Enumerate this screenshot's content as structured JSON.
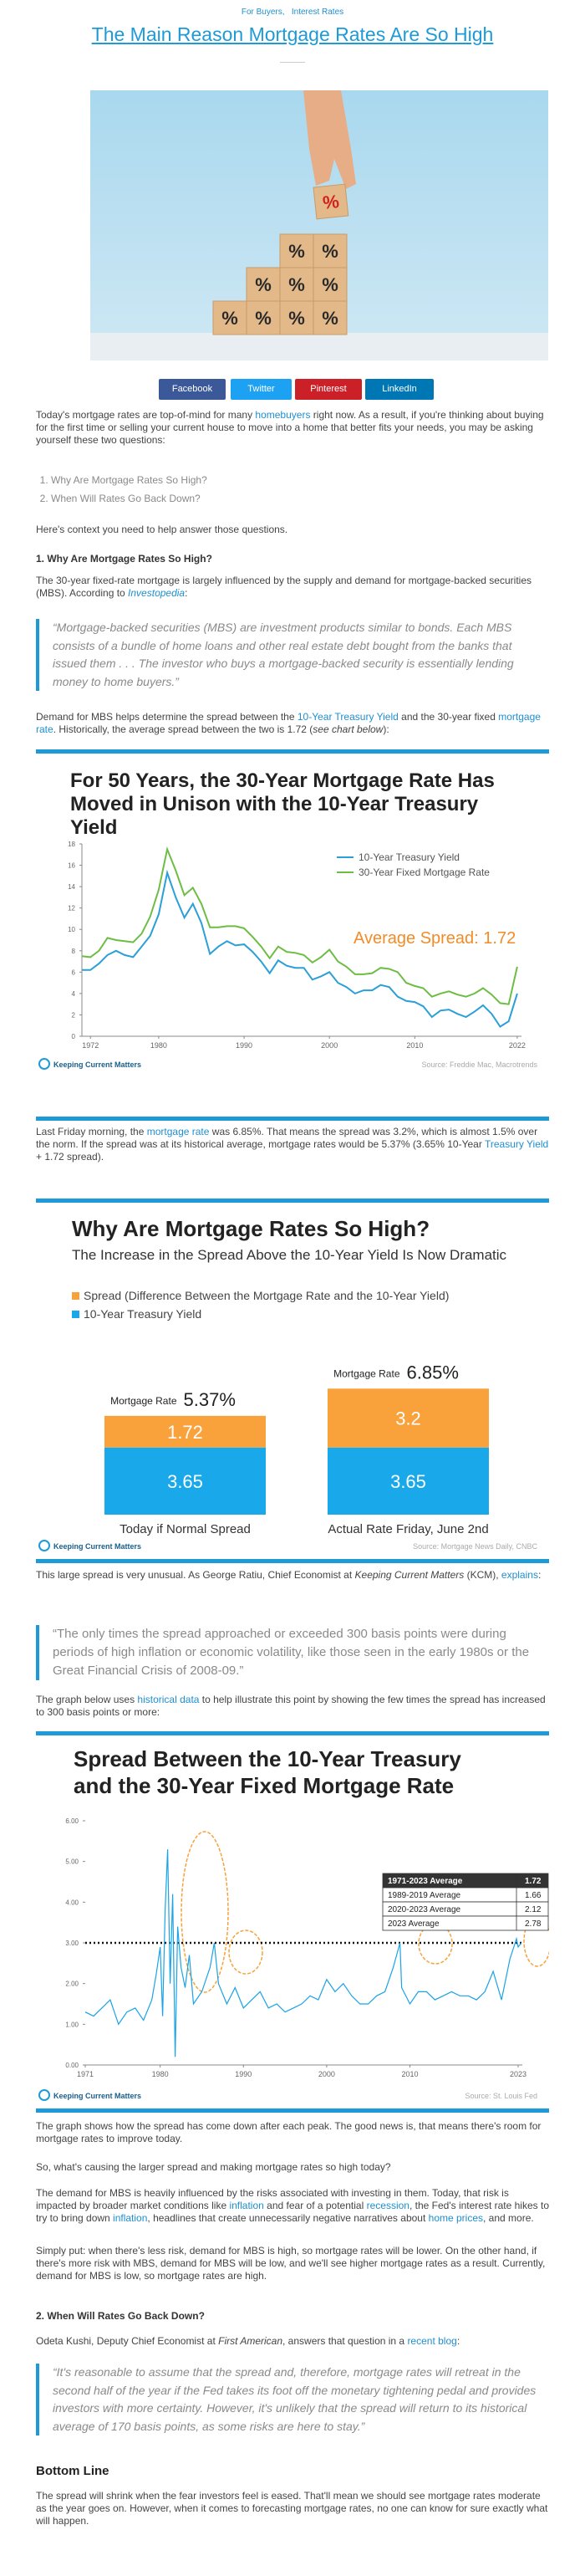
{
  "header": {
    "categories": [
      "For Buyers,",
      "Interest Rates"
    ],
    "title": "The Main Reason Mortgage Rates Are So High"
  },
  "hero": {
    "block_text": "%"
  },
  "share": [
    "Facebook",
    "Twitter",
    "Pinterest",
    "LinkedIn"
  ],
  "article": {
    "intro": [
      "Today's mortgage rates are top-of-mind for many ",
      {
        "t": "homebuyers",
        "s": "link"
      },
      " right now. As a result, if you're thinking about buying for the first time or selling your current house to move into a home that better fits your needs, you may be asking yourself these two questions:"
    ],
    "questions": [
      "Why Are Mortgage Rates So High?",
      "When Will Rates Go Back Down?"
    ],
    "context": [
      "Here's context you need to help answer those questions."
    ],
    "h1": "1. Why Are Mortgage Rates So High?",
    "mbs": [
      "The 30-year fixed-rate mortgage is largely influenced by the supply and demand for mortgage-backed securities (MBS). According to ",
      {
        "t": "Investopedia",
        "s": "link-em"
      },
      ":"
    ],
    "quote1": "“Mortgage-backed securities (MBS) are investment products similar to bonds. Each MBS consists of a bundle of home loans and other real estate debt bought from the banks that issued them . . . The investor who buys a mortgage-backed security is essentially lending money to home buyers.”",
    "demand": [
      "Demand for MBS helps determine the spread between the ",
      {
        "t": "10-Year Treasury Yield",
        "s": "link"
      },
      " and the 30-year fixed ",
      {
        "t": "mortgage rate",
        "s": "link"
      },
      ". Historically, the average spread between the two is 1.72 (",
      {
        "t": "see chart below",
        "s": "em"
      },
      "):"
    ],
    "friday": [
      "Last Friday morning, the ",
      {
        "t": "mortgage rate",
        "s": "link"
      },
      " was 6.85%. That means the spread was 3.2%, which is almost 1.5% over the norm. If the spread was at its historical average, mortgage rates would be 5.37% (3.65% 10-Year ",
      {
        "t": "Treasury Yield",
        "s": "link"
      },
      " + 1.72 spread)."
    ],
    "large": [
      "This large spread is very unusual. As George Ratiu, Chief Economist at ",
      {
        "t": "Keeping Current Matters",
        "s": "em"
      },
      " (KCM), ",
      {
        "t": "explains",
        "s": "link"
      },
      ":"
    ],
    "quote2": "“The only times the spread approached or exceeded 300 basis points were during periods of high inflation or economic volatility, like those seen in the early 1980s or the Great Financial Crisis of 2008-09.”",
    "graph_below": [
      "The graph below uses ",
      {
        "t": "historical data",
        "s": "link"
      },
      " to help illustrate this point by showing the few times the spread has increased to 300 basis points or more:"
    ],
    "comes_down": [
      "The graph shows how the spread has come down after each peak. The good news is, that means there's room for mortgage rates to improve today."
    ],
    "causing": [
      "So, what's causing the larger spread and making mortgage rates so high today?"
    ],
    "risk": [
      "The demand for MBS is heavily influenced by the risks associated with investing in them. Today, that risk is impacted by broader market conditions like ",
      {
        "t": "inflation",
        "s": "link"
      },
      " and fear of a potential ",
      {
        "t": "recession",
        "s": "link"
      },
      ", the Fed's interest rate hikes to try to bring down ",
      {
        "t": "inflation",
        "s": "link"
      },
      ", headlines that create unnecessarily negative narratives about ",
      {
        "t": "home prices",
        "s": "link"
      },
      ", and more."
    ],
    "simply": [
      "Simply put: when there's less risk, demand for MBS is high, so mortgage rates will be lower. On the other hand, if there's more risk with MBS, demand for MBS will be low, and we'll see higher mortgage rates as a result. Currently, demand for MBS is low, so mortgage rates are high."
    ],
    "h2": "2. When Will Rates Go Back Down?",
    "odeta": [
      "Odeta Kushi, Deputy Chief Economist at ",
      {
        "t": "First American",
        "s": "em"
      },
      ", answers that question in a ",
      {
        "t": "recent blog",
        "s": "link"
      },
      ":"
    ],
    "quote3": "“It's reasonable to assume that the spread and, therefore, mortgage rates will retreat in the second half of the year if the Fed takes its foot off the monetary tightening pedal and provides investors with more certainty. However, it's unlikely that the spread will return to its historical average of 170 basis points, as some risks are here to stay.”",
    "bottom_heading": "Bottom Line",
    "bottom": [
      "The spread will shrink when the fear investors feel is eased. That'll mean we should see mortgage rates moderate as the year goes on. However, when it comes to forecasting mortgage rates, no one can know for sure exactly what will happen."
    ]
  },
  "chart_data": [
    {
      "type": "line",
      "title": "For 50 Years, the 30-Year Mortgage Rate Has Moved in Unison with the 10-Year Treasury Yield",
      "x": [
        1971,
        1972,
        1973,
        1974,
        1975,
        1976,
        1977,
        1978,
        1979,
        1980,
        1981,
        1982,
        1983,
        1984,
        1985,
        1986,
        1987,
        1988,
        1989,
        1990,
        1991,
        1992,
        1993,
        1994,
        1995,
        1996,
        1997,
        1998,
        1999,
        2000,
        2001,
        2002,
        2003,
        2004,
        2005,
        2006,
        2007,
        2008,
        2009,
        2010,
        2011,
        2012,
        2013,
        2014,
        2015,
        2016,
        2017,
        2018,
        2019,
        2020,
        2021,
        2022
      ],
      "series": [
        {
          "name": "10-Year Treasury Yield",
          "color": "#2a9fd8",
          "values": [
            6.2,
            6.2,
            6.8,
            7.6,
            8.0,
            7.6,
            7.4,
            8.4,
            9.4,
            11.4,
            15.3,
            13.0,
            11.1,
            12.4,
            10.6,
            7.7,
            8.4,
            8.9,
            8.5,
            8.6,
            7.9,
            7.0,
            5.9,
            7.1,
            6.6,
            6.4,
            6.4,
            5.3,
            5.6,
            6.0,
            5.0,
            4.6,
            4.0,
            4.3,
            4.3,
            4.8,
            4.6,
            3.7,
            3.3,
            3.2,
            2.8,
            1.8,
            2.4,
            2.5,
            2.1,
            1.8,
            2.3,
            2.9,
            2.1,
            0.9,
            1.4,
            4.0
          ]
        },
        {
          "name": "30-Year Fixed Mortgage Rate",
          "color": "#6dbd45",
          "values": [
            7.5,
            7.4,
            8.0,
            9.2,
            9.0,
            8.9,
            8.8,
            9.6,
            11.2,
            13.7,
            17.5,
            15.5,
            13.2,
            13.9,
            12.4,
            10.2,
            10.2,
            10.3,
            10.3,
            10.1,
            9.3,
            8.4,
            7.3,
            8.4,
            7.9,
            7.8,
            7.6,
            6.9,
            7.4,
            8.1,
            7.0,
            6.5,
            5.8,
            5.8,
            5.9,
            6.4,
            6.3,
            6.0,
            5.0,
            4.7,
            4.5,
            3.7,
            4.0,
            4.2,
            3.9,
            3.7,
            4.0,
            4.5,
            3.9,
            3.1,
            3.0,
            6.5
          ]
        }
      ],
      "xlim": [
        1971,
        2022.5
      ],
      "xticks": [
        1972,
        1980,
        1990,
        2000,
        2010,
        2022
      ],
      "ylim": [
        0,
        18
      ],
      "yticks": [
        0,
        2,
        4,
        6,
        8,
        10,
        12,
        14,
        16,
        18
      ],
      "annotation": "Average Spread: 1.72",
      "annotation_color": "#f28c28",
      "logo": "Keeping Current Matters",
      "source": "Source: Freddie Mac, Macrotrends"
    },
    {
      "type": "stacked_bar",
      "title": "Why Are Mortgage Rates So High?",
      "subtitle": "The Increase in the Spread Above the 10-Year Yield Is Now Dramatic",
      "categories": [
        "Today if Normal Spread",
        "Actual Rate Friday, June 2nd"
      ],
      "series": [
        {
          "name": "Spread (Difference Between the Mortgage Rate and the 10-Year Yield)",
          "color": "#f9a23b",
          "values": [
            1.72,
            3.2
          ]
        },
        {
          "name": "10-Year Treasury Yield",
          "color": "#19a9ea",
          "values": [
            3.65,
            3.65
          ]
        }
      ],
      "total_caption": "Mortgage Rate",
      "total_labels": [
        "5.37%",
        "6.85%"
      ],
      "logo": "Keeping Current Matters",
      "source": "Source: Mortgage News Daily, CNBC"
    },
    {
      "type": "line",
      "title": "Spread Between the 10-Year Treasury and the 30-Year Fixed Mortgage Rate",
      "x": [
        1971,
        1972,
        1973,
        1974,
        1975,
        1976,
        1977,
        1978,
        1979,
        1979.5,
        1980,
        1980.3,
        1980.6,
        1980.9,
        1981.2,
        1981.5,
        1981.8,
        1982.1,
        1982.5,
        1983,
        1983.5,
        1984,
        1985,
        1986,
        1986.5,
        1987,
        1988,
        1989,
        1990,
        1991,
        1992,
        1993,
        1994,
        1995,
        1996,
        1997,
        1998,
        1999,
        2000,
        2001,
        2002,
        2003,
        2004,
        2005,
        2006,
        2007,
        2008,
        2008.8,
        2009,
        2010,
        2011,
        2012,
        2013,
        2014,
        2015,
        2016,
        2017,
        2018,
        2019,
        2020,
        2021,
        2022,
        2022.8,
        2023,
        2023.4
      ],
      "series": [
        {
          "name": "Spread",
          "color": "#1aa3e6",
          "values": [
            1.3,
            1.2,
            1.4,
            1.6,
            1.0,
            1.3,
            1.4,
            1.1,
            1.6,
            2.2,
            2.9,
            1.2,
            3.8,
            5.3,
            2.0,
            4.2,
            0.2,
            3.4,
            2.4,
            1.9,
            2.7,
            1.5,
            1.8,
            2.4,
            3.0,
            2.0,
            1.5,
            1.9,
            1.4,
            1.6,
            1.8,
            1.4,
            1.5,
            1.3,
            1.4,
            1.5,
            1.7,
            1.6,
            2.1,
            1.8,
            2.0,
            1.7,
            1.5,
            1.5,
            1.7,
            1.8,
            2.4,
            3.0,
            1.9,
            1.5,
            1.8,
            1.8,
            1.6,
            1.7,
            1.8,
            1.7,
            1.7,
            1.6,
            1.8,
            2.3,
            1.6,
            2.6,
            3.1,
            2.9,
            3.0
          ]
        }
      ],
      "xlim": [
        1971,
        2023.5
      ],
      "xticks": [
        1971,
        1980,
        1990,
        2000,
        2010,
        2023
      ],
      "ylim": [
        0,
        6
      ],
      "yticks": [
        {
          "value": 0,
          "label": "0.00"
        },
        {
          "value": 1,
          "label": "1.00"
        },
        {
          "value": 2,
          "label": "2.00"
        },
        {
          "value": 3,
          "label": "3.00"
        },
        {
          "value": 4,
          "label": "4.00"
        },
        {
          "value": 5,
          "label": "5.00"
        },
        {
          "value": 6,
          "label": "6.00"
        }
      ],
      "reference_line": 3,
      "table": [
        [
          "1971-2023 Average",
          "1.72"
        ],
        [
          "1989-2019 Average",
          "1.66"
        ],
        [
          "2020-2023 Average",
          "2.12"
        ],
        [
          "2023 Average",
          "2.78"
        ]
      ],
      "logo": "Keeping Current Matters",
      "source": "Source: St. Louis Fed"
    }
  ]
}
